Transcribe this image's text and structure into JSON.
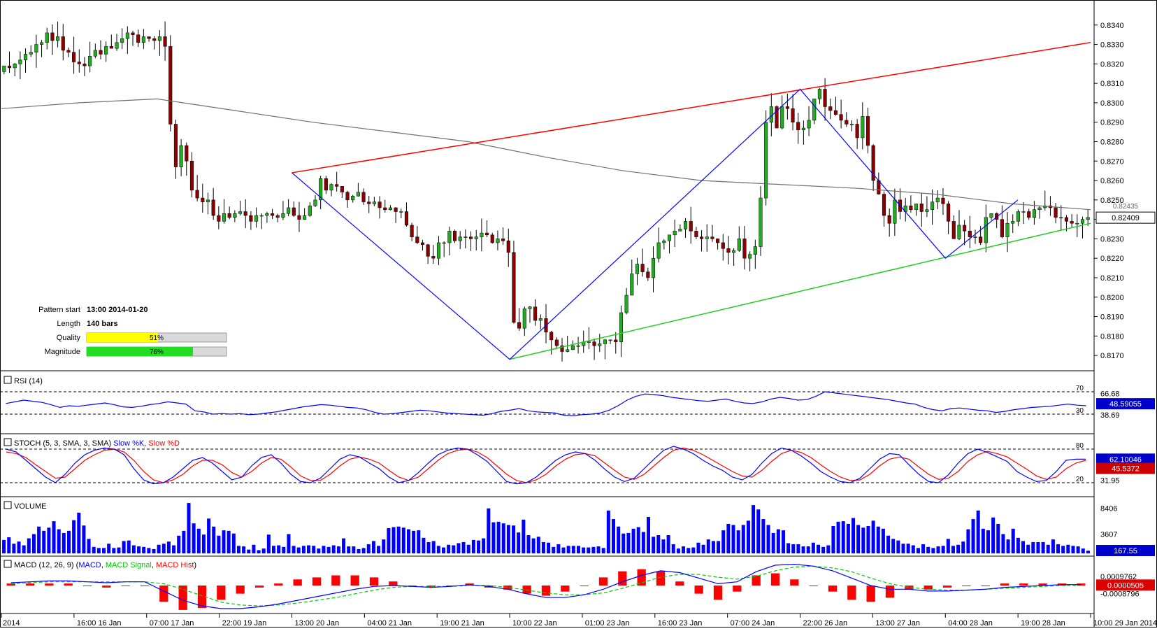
{
  "colors": {
    "bull": "#22aa22",
    "bear": "#8b0000",
    "resistance": "#ff0000",
    "support": "#22cc22",
    "zigzag": "#0000ff",
    "ma": "#707070",
    "rsi": "#0000ff",
    "stoch_k": "#0000ff",
    "stoch_d": "#ff0000",
    "volume": "#0000ff",
    "macd": "#0000ff",
    "macd_signal": "#00cc00",
    "macd_hist": "#ff0000",
    "quality_bar": "#ffff00",
    "magnitude_bar": "#22dd22"
  },
  "pattern_info": {
    "start_label": "Pattern start",
    "start_value": "13:00 2014-01-20",
    "length_label": "Length",
    "length_value": "140 bars",
    "quality_label": "Quality",
    "quality_value": "51%",
    "quality_fraction": 0.51,
    "magnitude_label": "Magnitude",
    "magnitude_value": "76%",
    "magnitude_fraction": 0.76
  },
  "chart_data": [
    {
      "type": "candlestick",
      "panel": "price",
      "title": "",
      "ylim": [
        0.8165,
        0.835
      ],
      "y_ticks": [
        "0.8340",
        "0.8330",
        "0.8320",
        "0.8310",
        "0.8300",
        "0.8290",
        "0.8280",
        "0.8270",
        "0.8260",
        "0.8250",
        "0.8240",
        "0.8230",
        "0.8220",
        "0.8210",
        "0.8200",
        "0.8190",
        "0.8180",
        "0.8170"
      ],
      "last_price_label": "0.82409",
      "second_price_label": "0.82435",
      "x_tick_labels": [
        "2014",
        "16:00 16 Jan",
        "07:00 17 Jan",
        "22:00 19 Jan",
        "13:00 20 Jan",
        "04:00 21 Jan",
        "19:00 21 Jan",
        "10:00 22 Jan",
        "01:00 23 Jan",
        "16:00 23 Jan",
        "07:00 24 Jan",
        "22:00 26 Jan",
        "13:00 27 Jan",
        "04:00 28 Jan",
        "19:00 28 Jan",
        "10:00 29 Jan 2014"
      ],
      "closes": [
        0.8319,
        0.8318,
        0.832,
        0.8322,
        0.8325,
        0.8326,
        0.833,
        0.8331,
        0.8336,
        0.8332,
        0.8334,
        0.8327,
        0.8326,
        0.8321,
        0.832,
        0.8319,
        0.8324,
        0.8327,
        0.8325,
        0.8329,
        0.8328,
        0.8331,
        0.8333,
        0.8336,
        0.8335,
        0.8331,
        0.8334,
        0.8333,
        0.8332,
        0.8334,
        0.8329,
        0.8289,
        0.8267,
        0.8278,
        0.827,
        0.8255,
        0.8251,
        0.8249,
        0.825,
        0.8242,
        0.8239,
        0.8243,
        0.8241,
        0.8243,
        0.8244,
        0.8242,
        0.8239,
        0.8242,
        0.8242,
        0.8243,
        0.8242,
        0.8241,
        0.8243,
        0.8246,
        0.8242,
        0.824,
        0.8242,
        0.8247,
        0.825,
        0.8261,
        0.8255,
        0.8258,
        0.8257,
        0.8254,
        0.825,
        0.8252,
        0.8254,
        0.8249,
        0.8248,
        0.8249,
        0.8246,
        0.8245,
        0.8246,
        0.8244,
        0.8244,
        0.8237,
        0.8231,
        0.8228,
        0.8227,
        0.8221,
        0.822,
        0.8228,
        0.8228,
        0.8234,
        0.8229,
        0.8231,
        0.8231,
        0.823,
        0.8231,
        0.8233,
        0.8232,
        0.8228,
        0.823,
        0.8229,
        0.8223,
        0.8187,
        0.8184,
        0.8194,
        0.8195,
        0.8188,
        0.8189,
        0.8182,
        0.8178,
        0.8175,
        0.8172,
        0.8173,
        0.8175,
        0.8175,
        0.8177,
        0.8177,
        0.8175,
        0.8176,
        0.8178,
        0.8178,
        0.8177,
        0.8192,
        0.8201,
        0.8212,
        0.8217,
        0.8213,
        0.821,
        0.822,
        0.8228,
        0.8229,
        0.8232,
        0.8234,
        0.8235,
        0.8239,
        0.8234,
        0.8231,
        0.823,
        0.8231,
        0.823,
        0.8228,
        0.8225,
        0.8223,
        0.8224,
        0.823,
        0.822,
        0.8222,
        0.8226,
        0.8251,
        0.829,
        0.8298,
        0.8287,
        0.8298,
        0.8297,
        0.829,
        0.8286,
        0.8287,
        0.8291,
        0.8302,
        0.8307,
        0.8298,
        0.8296,
        0.8294,
        0.8291,
        0.8289,
        0.8289,
        0.8282,
        0.8293,
        0.8278,
        0.826,
        0.8253,
        0.8242,
        0.8238,
        0.825,
        0.8244,
        0.8247,
        0.8245,
        0.8248,
        0.8244,
        0.8245,
        0.8249,
        0.8251,
        0.8248,
        0.8239,
        0.823,
        0.8237,
        0.8234,
        0.8231,
        0.8231,
        0.8228,
        0.8241,
        0.8243,
        0.824,
        0.8231,
        0.8238,
        0.8239,
        0.8244,
        0.8244,
        0.8241,
        0.8245,
        0.8246,
        0.8247,
        0.8246,
        0.8241,
        0.8241,
        0.8239,
        0.8238,
        0.8238,
        0.824,
        0.8241
      ],
      "ma_values": [
        0.8297,
        0.83,
        0.8302,
        0.8296,
        0.829,
        0.8285,
        0.828,
        0.8272,
        0.8265,
        0.826,
        0.8258,
        0.8256,
        0.8253,
        0.8248,
        0.8245
      ],
      "zigzag_x_labels": [
        "13:00 20 Jan",
        "10:00 22 Jan",
        "07:00 24 Jan",
        "04:00 28 Jan",
        "19:00 28 Jan"
      ],
      "trendlines": [
        {
          "name": "resistance",
          "x_label": [
            "13:00 20 Jan",
            "10:00 29 Jan 2014"
          ],
          "y": [
            0.8264,
            0.8331
          ]
        },
        {
          "name": "support",
          "x_label": [
            "10:00 22 Jan",
            "10:00 29 Jan 2014"
          ],
          "y": [
            0.8168,
            0.8238
          ]
        }
      ]
    },
    {
      "type": "line",
      "panel": "rsi",
      "title": "RSI (14)",
      "levels": [
        "70",
        "30"
      ],
      "axis_labels": [
        "66.68",
        "38.69"
      ],
      "current_value": "48.59055",
      "values": [
        49,
        52,
        55,
        53,
        51,
        47,
        42,
        45,
        44,
        46,
        48,
        50,
        47,
        43,
        42,
        44,
        47,
        49,
        52,
        50,
        48,
        36,
        34,
        30,
        31,
        30,
        31,
        29,
        30,
        32,
        34,
        37,
        40,
        43,
        45,
        47,
        46,
        44,
        42,
        41,
        38,
        33,
        30,
        31,
        33,
        35,
        37,
        36,
        34,
        32,
        31,
        30,
        29,
        28,
        31,
        35,
        37,
        40,
        36,
        34,
        33,
        32,
        28,
        27,
        29,
        30,
        32,
        37,
        45,
        55,
        62,
        66,
        65,
        63,
        60,
        58,
        56,
        54,
        53,
        55,
        57,
        53,
        50,
        49,
        52,
        57,
        60,
        58,
        55,
        56,
        62,
        70,
        68,
        66,
        64,
        62,
        60,
        58,
        56,
        53,
        50,
        48,
        42,
        38,
        36,
        40,
        41,
        39,
        37,
        36,
        33,
        35,
        38,
        40,
        42,
        43,
        44,
        46,
        48,
        46,
        45
      ]
    },
    {
      "type": "line",
      "panel": "stochastic",
      "title": "STOCH (5, 3, SMA, 3, SMA)",
      "series_names": [
        "Slow %K",
        "Slow %D"
      ],
      "levels": [
        "80",
        "20"
      ],
      "axis_labels": [
        "31.95"
      ],
      "current_k": "62.10046",
      "current_d": "45.5372",
      "k_values": [
        80,
        75,
        60,
        45,
        30,
        20,
        35,
        55,
        70,
        78,
        82,
        80,
        70,
        45,
        25,
        18,
        20,
        30,
        45,
        60,
        65,
        55,
        40,
        25,
        30,
        50,
        65,
        70,
        55,
        35,
        22,
        20,
        28,
        45,
        62,
        70,
        66,
        55,
        45,
        30,
        20,
        24,
        38,
        55,
        70,
        78,
        82,
        80,
        70,
        58,
        40,
        22,
        18,
        20,
        30,
        45,
        60,
        70,
        75,
        72,
        60,
        44,
        30,
        22,
        28,
        45,
        62,
        78,
        85,
        80,
        72,
        60,
        50,
        42,
        30,
        25,
        35,
        55,
        72,
        82,
        78,
        68,
        55,
        40,
        30,
        22,
        20,
        28,
        45,
        62,
        72,
        70,
        52,
        35,
        22,
        20,
        34,
        55,
        72,
        80,
        74,
        66,
        58,
        40,
        30,
        22,
        24,
        40,
        60,
        62,
        62
      ],
      "d_values": [
        75,
        72,
        65,
        52,
        40,
        28,
        30,
        45,
        60,
        70,
        78,
        80,
        75,
        60,
        40,
        25,
        20,
        25,
        35,
        50,
        60,
        60,
        52,
        38,
        30,
        40,
        55,
        65,
        62,
        48,
        32,
        24,
        24,
        35,
        50,
        62,
        66,
        62,
        55,
        42,
        30,
        24,
        30,
        45,
        60,
        72,
        78,
        80,
        75,
        65,
        50,
        35,
        24,
        20,
        25,
        35,
        50,
        62,
        70,
        72,
        68,
        55,
        42,
        30,
        26,
        35,
        50,
        65,
        78,
        82,
        78,
        70,
        60,
        50,
        40,
        32,
        30,
        42,
        58,
        72,
        78,
        74,
        65,
        52,
        40,
        30,
        24,
        25,
        35,
        50,
        62,
        66,
        62,
        48,
        35,
        26,
        28,
        40,
        58,
        70,
        76,
        72,
        66,
        55,
        44,
        32,
        26,
        30,
        45,
        55,
        60
      ]
    },
    {
      "type": "bar",
      "panel": "volume",
      "title": "VOLUME",
      "axis_labels": [
        "8406",
        "3607"
      ],
      "current_value": "167.55",
      "values": [
        2500,
        3000,
        1800,
        2200,
        1500,
        2800,
        3600,
        5000,
        4200,
        4800,
        6000,
        4500,
        3800,
        4200,
        6200,
        7600,
        5200,
        2700,
        1200,
        1000,
        1000,
        1800,
        1000,
        1100,
        2300,
        2400,
        1500,
        1300,
        1200,
        1000,
        800,
        1600,
        1800,
        2200,
        1500,
        3300,
        4200,
        9400,
        5600,
        4600,
        3500,
        6500,
        5000,
        3300,
        4300,
        4200,
        3700,
        1400,
        1300,
        700,
        1600,
        600,
        900,
        3500,
        1400,
        1500,
        1200,
        3600,
        1400,
        1100,
        1400,
        1500,
        1400,
        900,
        1400,
        1200,
        1500,
        1300,
        2800,
        1300,
        1300,
        800,
        1000,
        1700,
        2300,
        1400,
        2600,
        4700,
        4900,
        5000,
        4800,
        4500,
        4200,
        4300,
        2900,
        2100,
        2300,
        1400,
        1100,
        1600,
        1500,
        1900,
        2100,
        1600,
        2500,
        2400,
        2800,
        8400,
        5800,
        5900,
        5600,
        5300,
        5200,
        3900,
        6300,
        3400,
        2800,
        3100,
        2100,
        2000,
        1200,
        1700,
        1100,
        1400,
        1400,
        1400,
        1100,
        1100,
        1200,
        1300,
        1000,
        8000,
        6400,
        5000,
        3700,
        3800,
        4600,
        4900,
        4000,
        6800,
        3100,
        3400,
        2600,
        3400,
        1700,
        900,
        1300,
        1000,
        1100,
        2000,
        1600,
        2600,
        2300,
        2300,
        4300,
        5500,
        5300,
        4300,
        5300,
        6100,
        9000,
        8200,
        6400,
        5300,
        3800,
        4500,
        4300,
        1900,
        1700,
        1700,
        1300,
        1300,
        2000,
        1600,
        1200,
        1500,
        5100,
        5900,
        6000,
        5500,
        6600,
        5300,
        4800,
        5100,
        6100,
        5000,
        4600,
        3300,
        2700,
        2400,
        1800,
        1800,
        1500,
        1000,
        1700,
        1200,
        1000,
        1300,
        1400,
        2700,
        1400,
        1600,
        2200,
        4500,
        6400,
        8000,
        4600,
        4300,
        6700,
        5500,
        3600,
        2600,
        4600,
        2900,
        2300,
        1600,
        2100,
        2100,
        2100,
        1600,
        2600,
        1700,
        1400,
        1600,
        1400,
        1300,
        900,
        500
      ]
    },
    {
      "type": "line",
      "panel": "macd",
      "title": "MACD (12, 26, 9)",
      "series_names": [
        "MACD",
        "MACD Signal",
        "MACD Hist"
      ],
      "axis_labels": [
        "0.0009762",
        "-0.0008796"
      ],
      "current_value": "0.0000505",
      "macd_values": [
        0.0003,
        0.0004,
        0.0005,
        0.0005,
        0.0004,
        0.0003,
        0.0004,
        0.0004,
        -0.0006,
        -0.0016,
        -0.0022,
        -0.0025,
        -0.0025,
        -0.0023,
        -0.002,
        -0.0016,
        -0.0012,
        -0.0008,
        -0.0004,
        -0.0001,
        0.0,
        -0.0001,
        -0.0002,
        -0.0001,
        0.0001,
        -0.0001,
        -0.0004,
        -0.0009,
        -0.0013,
        -0.0013,
        -0.001,
        -0.0004,
        0.0004,
        0.0011,
        0.0016,
        0.0014,
        0.0008,
        0.0002,
        0.0004,
        0.0015,
        0.0022,
        0.0023,
        0.0021,
        0.0016,
        0.0008,
        0.0,
        -0.0004,
        -0.0004,
        -0.0006,
        -0.0006,
        -0.0005,
        -0.0004,
        -0.0002,
        -0.0001,
        0.0,
        0.0001,
        0.0001
      ],
      "signal_values": [
        0.0002,
        0.0003,
        0.0004,
        0.0004,
        0.0004,
        0.0004,
        0.0004,
        0.0004,
        0.0002,
        -0.0004,
        -0.0011,
        -0.0018,
        -0.0021,
        -0.0022,
        -0.0021,
        -0.0019,
        -0.0016,
        -0.0013,
        -0.0009,
        -0.0005,
        -0.0002,
        -0.0001,
        -0.0001,
        -0.0001,
        0.0,
        0.0,
        -0.0002,
        -0.0005,
        -0.0008,
        -0.001,
        -0.001,
        -0.0008,
        -0.0003,
        0.0003,
        0.0009,
        0.0012,
        0.0012,
        0.0009,
        0.0007,
        0.001,
        0.0016,
        0.002,
        0.0021,
        0.0019,
        0.0015,
        0.0008,
        0.0002,
        -0.0002,
        -0.0004,
        -0.0005,
        -0.0005,
        -0.0004,
        -0.0003,
        -0.0002,
        -0.0001,
        0.0,
        0.0
      ]
    }
  ]
}
